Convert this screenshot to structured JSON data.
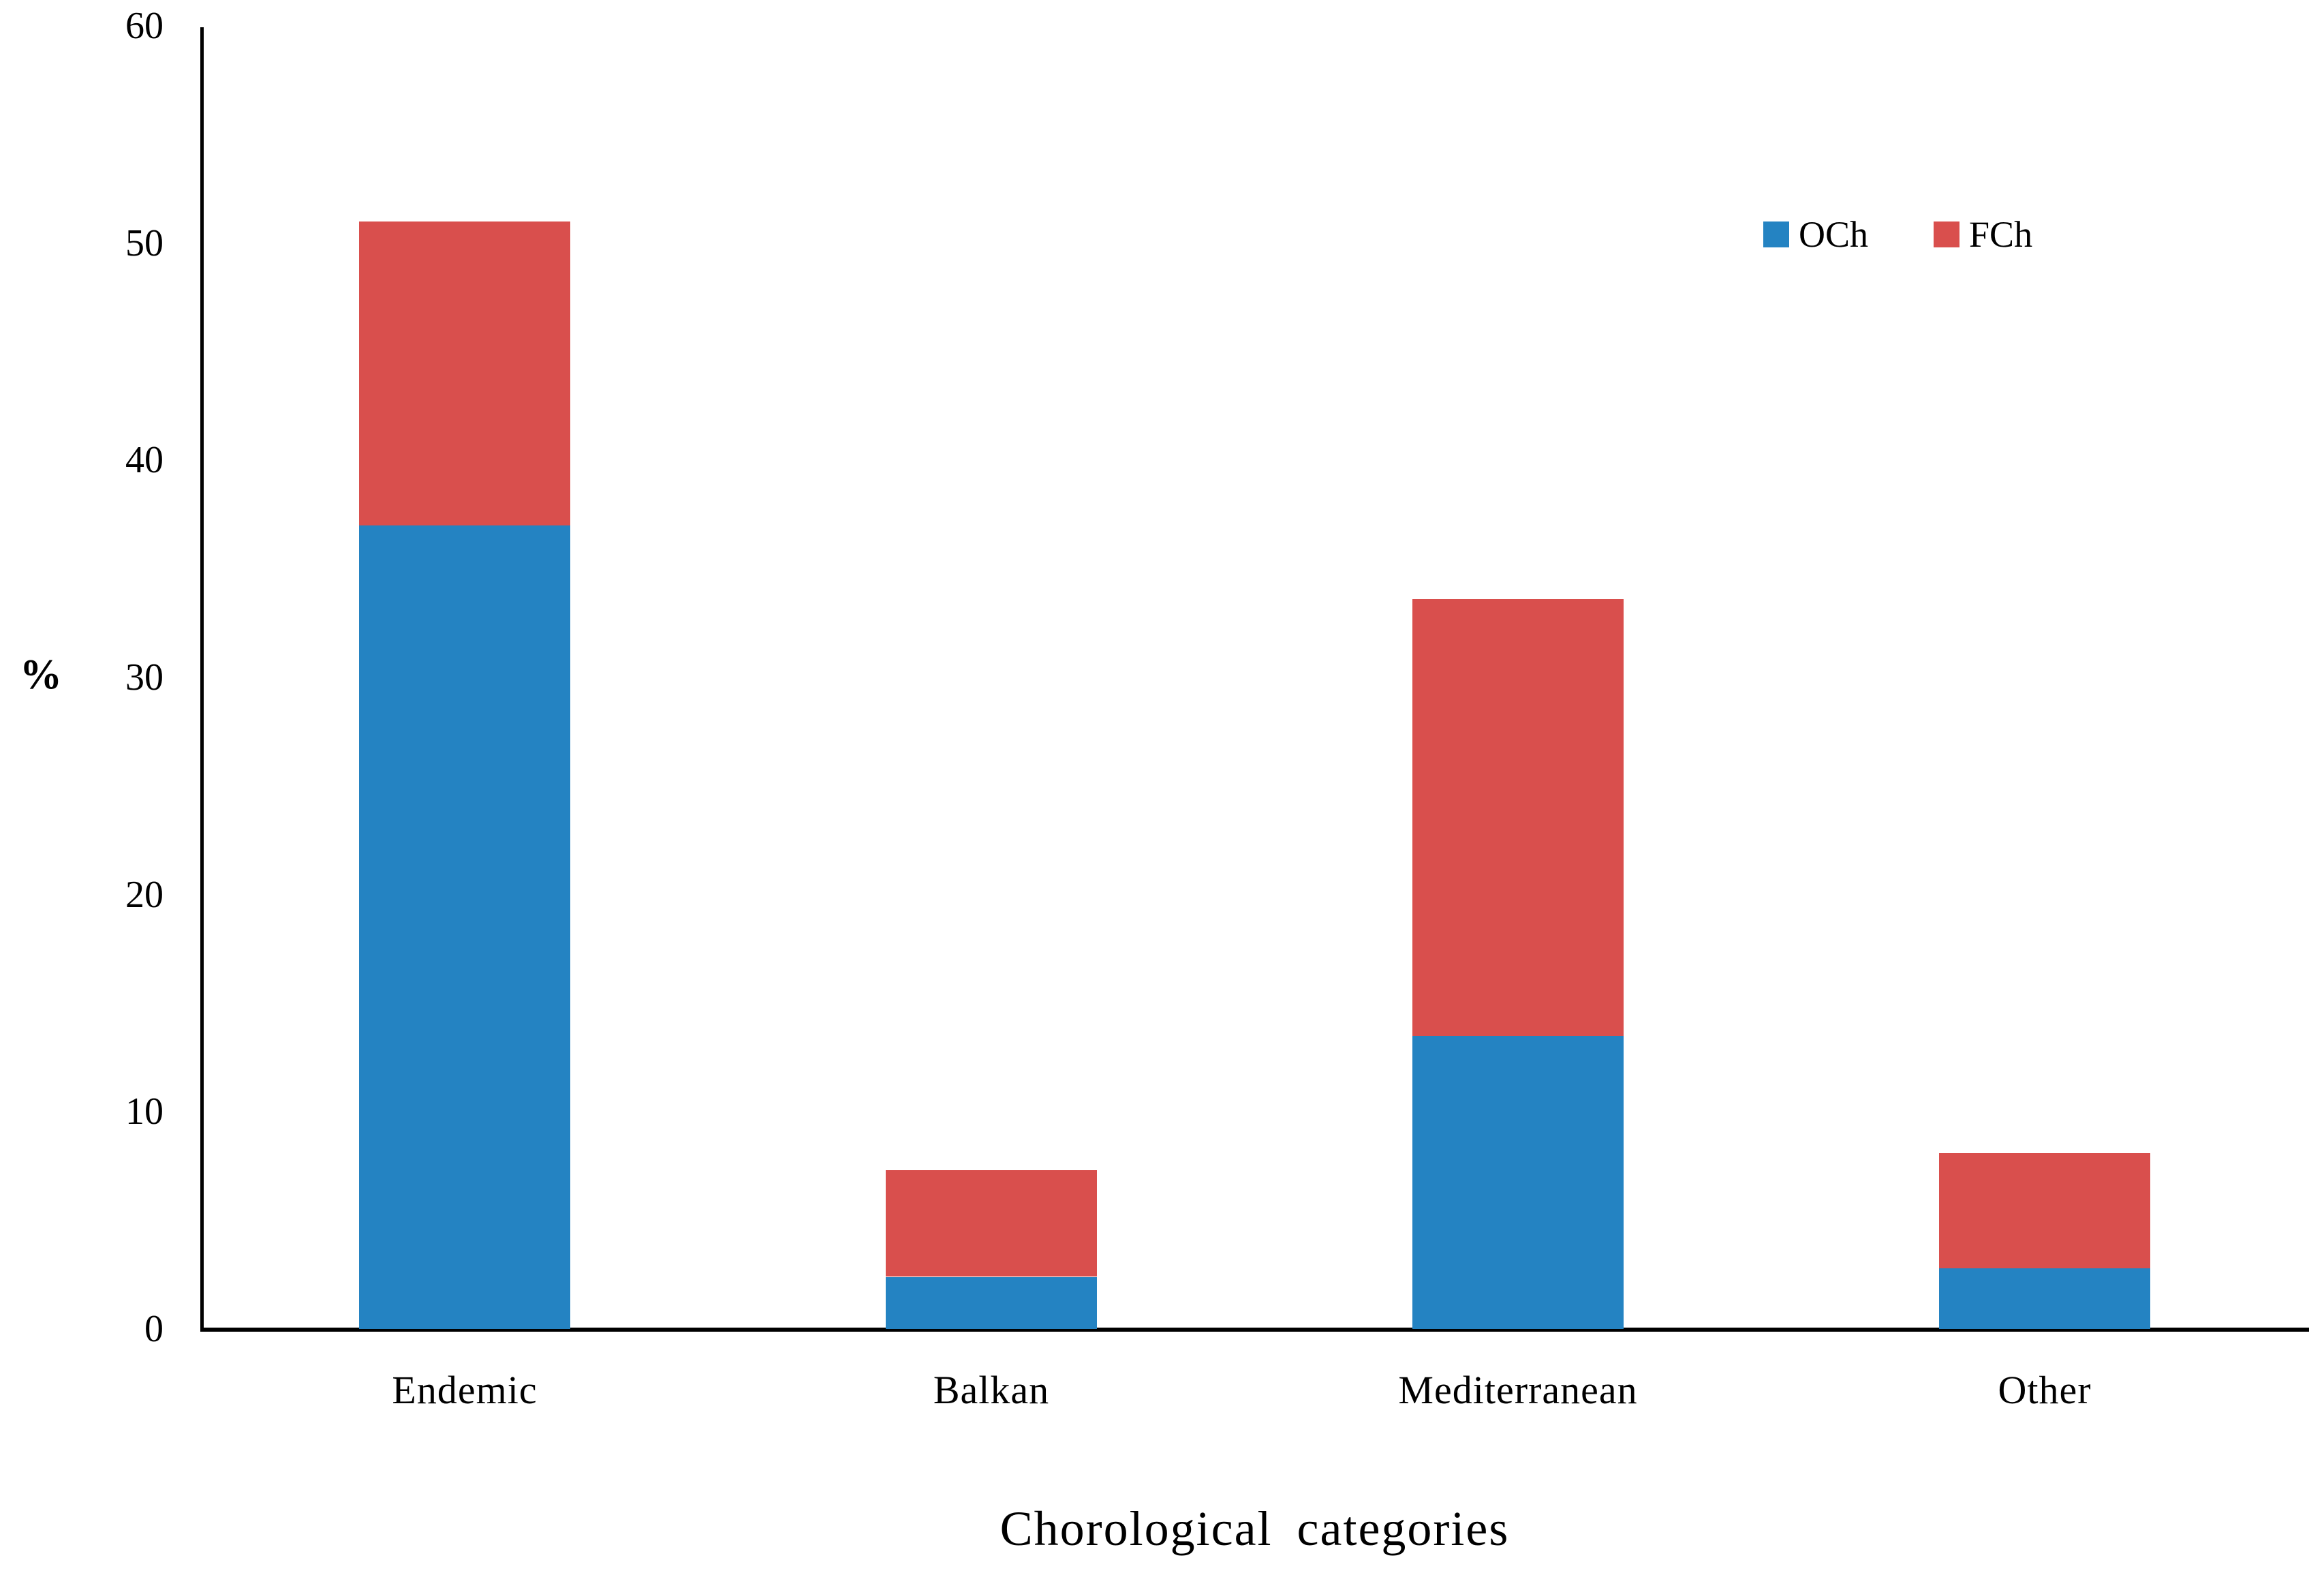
{
  "chart_data": {
    "type": "bar",
    "stacked": true,
    "title": "",
    "xlabel": "Chorological categories",
    "ylabel": "%",
    "categories": [
      "Endemic",
      "Balkan",
      "Mediterranean",
      "Other"
    ],
    "series": [
      {
        "name": "OCh",
        "color": "#2483C2",
        "values": [
          37.0,
          2.4,
          13.5,
          2.8
        ]
      },
      {
        "name": "FCh",
        "color": "#D94F4D",
        "values": [
          14.0,
          4.9,
          20.1,
          5.3
        ]
      }
    ],
    "stack_totals": [
      51.0,
      7.3,
      33.6,
      8.1
    ],
    "ylim": [
      0,
      60
    ],
    "yticks": [
      0,
      10,
      20,
      30,
      40,
      50,
      60
    ],
    "grid": false,
    "legend_position": "top-right",
    "axis_color": "#000000",
    "background_color": "#ffffff"
  }
}
